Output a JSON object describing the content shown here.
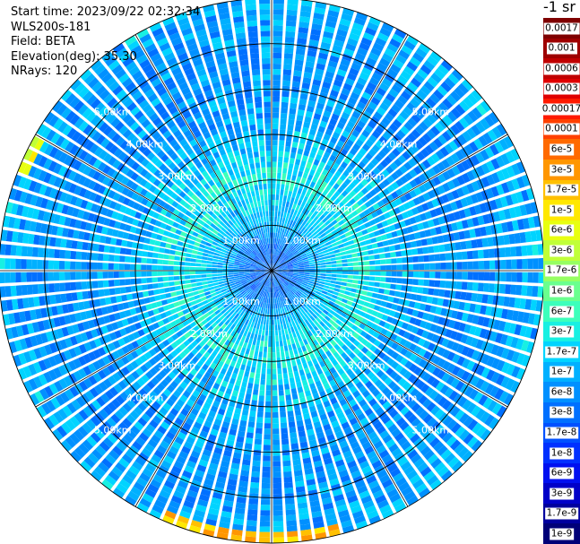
{
  "header": {
    "start_time": "Start time: 2023/09/22 02:32:34",
    "instrument": "WLS200s-181",
    "field": "Field: BETA",
    "elevation": "Elevation(deg): 35.30",
    "nrays": "NRays: 120"
  },
  "colorbar": {
    "title": "-1 sr",
    "ticks": [
      {
        "label": "0.0017",
        "color": "#7f0000"
      },
      {
        "label": "0.001",
        "color": "#9e0000"
      },
      {
        "label": "0.0006",
        "color": "#c00000"
      },
      {
        "label": "0.0003",
        "color": "#e00000"
      },
      {
        "label": "0.00017",
        "color": "#ff1a00"
      },
      {
        "label": "0.0001",
        "color": "#ff4000"
      },
      {
        "label": "6e-5",
        "color": "#ff6a00"
      },
      {
        "label": "3e-5",
        "color": "#ff9600"
      },
      {
        "label": "1.7e-5",
        "color": "#ffc000"
      },
      {
        "label": "1e-5",
        "color": "#ffe800"
      },
      {
        "label": "6e-6",
        "color": "#e8ff10"
      },
      {
        "label": "3e-6",
        "color": "#c0ff38"
      },
      {
        "label": "1.7e-6",
        "color": "#96ff62"
      },
      {
        "label": "1e-6",
        "color": "#6aff8e"
      },
      {
        "label": "6e-7",
        "color": "#3cffbb"
      },
      {
        "label": "3e-7",
        "color": "#18f0e2"
      },
      {
        "label": "1.7e-7",
        "color": "#00d4ff"
      },
      {
        "label": "1e-7",
        "color": "#00b0ff"
      },
      {
        "label": "6e-8",
        "color": "#0090ff"
      },
      {
        "label": "3e-8",
        "color": "#0070ff"
      },
      {
        "label": "1.7e-8",
        "color": "#0050ff"
      },
      {
        "label": "1e-8",
        "color": "#0030ff"
      },
      {
        "label": "6e-9",
        "color": "#0010f0"
      },
      {
        "label": "3e-9",
        "color": "#0000c8"
      },
      {
        "label": "1.7e-9",
        "color": "#00009e"
      },
      {
        "label": "1e-9",
        "color": "#000078"
      }
    ]
  },
  "chart_data": {
    "type": "heatmap",
    "projection": "polar-ppi",
    "field": "BETA",
    "n_rays": 120,
    "elevation_deg": 35.3,
    "range_max_km": 6.0,
    "range_rings_km": [
      1,
      2,
      3,
      4,
      5
    ],
    "ring_labels": [
      "1.00km",
      "2.00km",
      "3.00km",
      "4.00km",
      "5.00km"
    ],
    "azimuth_spokes_deg": [
      0,
      30,
      60,
      90,
      120,
      150,
      180,
      210,
      240,
      270,
      300,
      330
    ],
    "value_profile": [
      {
        "range_km": 0.5,
        "value": 3e-08
      },
      {
        "range_km": 1.0,
        "value": 1e-07
      },
      {
        "range_km": 2.0,
        "value": 3e-07
      },
      {
        "range_km": 2.5,
        "value": 1.7e-07
      },
      {
        "range_km": 3.0,
        "value": 1e-07
      },
      {
        "range_km": 4.0,
        "value": 6e-08
      },
      {
        "range_km": 5.0,
        "value": 6e-08
      },
      {
        "range_km": 5.9,
        "value": 1e-07
      }
    ],
    "edge_highlights": [
      {
        "azimuth_deg_from": 165,
        "azimuth_deg_to": 205,
        "value": 1.7e-05
      },
      {
        "azimuth_deg_from": 290,
        "azimuth_deg_to": 300,
        "value": 6e-06
      }
    ]
  }
}
